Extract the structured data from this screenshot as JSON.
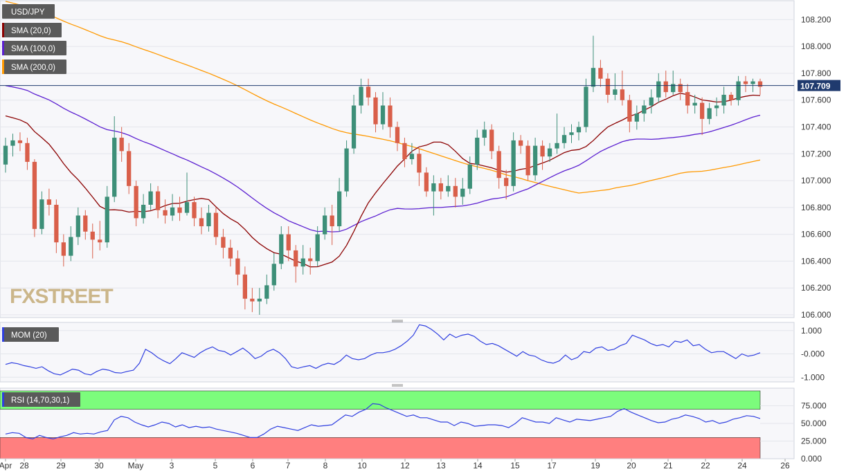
{
  "chart_data": [
    {
      "type": "candlestick",
      "title": "USD/JPY",
      "indicators": [
        {
          "name": "SMA (20,0)",
          "color": "#8b0000"
        },
        {
          "name": "SMA (100,0)",
          "color": "#5b1fd1"
        },
        {
          "name": "SMA (200,0)",
          "color": "#ff9900"
        }
      ],
      "last_price": "107.709",
      "ylim": [
        106.0,
        108.3
      ],
      "y_ticks": [
        "106.000",
        "106.200",
        "106.400",
        "106.600",
        "106.800",
        "107.000",
        "107.200",
        "107.400",
        "107.600",
        "107.800",
        "108.000",
        "108.200"
      ],
      "watermark": "FXSTREET",
      "colors": {
        "up": "#3d8f78",
        "down": "#d95f4a"
      },
      "candles": [
        [
          107.12,
          107.26,
          107.32,
          107.06
        ],
        [
          107.26,
          107.3,
          107.35,
          107.18
        ],
        [
          107.3,
          107.28,
          107.36,
          107.22
        ],
        [
          107.28,
          107.14,
          107.32,
          107.08
        ],
        [
          107.14,
          106.64,
          107.16,
          106.58
        ],
        [
          106.64,
          106.86,
          106.92,
          106.6
        ],
        [
          106.86,
          106.82,
          106.94,
          106.74
        ],
        [
          106.82,
          106.54,
          106.86,
          106.46
        ],
        [
          106.54,
          106.44,
          106.6,
          106.36
        ],
        [
          106.44,
          106.58,
          106.66,
          106.4
        ],
        [
          106.58,
          106.74,
          106.8,
          106.52
        ],
        [
          106.74,
          106.62,
          106.78,
          106.56
        ],
        [
          106.62,
          106.56,
          106.68,
          106.42
        ],
        [
          106.56,
          106.54,
          106.7,
          106.48
        ],
        [
          106.54,
          106.88,
          106.96,
          106.5
        ],
        [
          106.88,
          107.32,
          107.48,
          106.84
        ],
        [
          107.32,
          107.22,
          107.4,
          107.14
        ],
        [
          107.22,
          106.96,
          107.28,
          106.9
        ],
        [
          106.96,
          106.72,
          107.0,
          106.66
        ],
        [
          106.72,
          106.82,
          106.9,
          106.68
        ],
        [
          106.82,
          106.92,
          106.98,
          106.78
        ],
        [
          106.92,
          106.78,
          106.96,
          106.72
        ],
        [
          106.78,
          106.74,
          106.86,
          106.68
        ],
        [
          106.74,
          106.8,
          106.9,
          106.7
        ],
        [
          106.8,
          106.76,
          106.88,
          106.7
        ],
        [
          106.76,
          106.84,
          107.06,
          106.74
        ],
        [
          106.84,
          106.72,
          106.88,
          106.66
        ],
        [
          106.72,
          106.66,
          106.8,
          106.6
        ],
        [
          106.66,
          106.76,
          106.82,
          106.62
        ],
        [
          106.76,
          106.58,
          106.8,
          106.52
        ],
        [
          106.58,
          106.5,
          106.64,
          106.42
        ],
        [
          106.5,
          106.42,
          106.56,
          106.36
        ],
        [
          106.42,
          106.3,
          106.48,
          106.22
        ],
        [
          106.3,
          106.12,
          106.36,
          106.04
        ],
        [
          106.12,
          106.1,
          106.2,
          106.02
        ],
        [
          106.1,
          106.12,
          106.2,
          106.0
        ],
        [
          106.12,
          106.22,
          106.3,
          106.08
        ],
        [
          106.22,
          106.38,
          106.46,
          106.18
        ],
        [
          106.38,
          106.6,
          106.66,
          106.34
        ],
        [
          106.6,
          106.48,
          106.66,
          106.4
        ],
        [
          106.48,
          106.36,
          106.52,
          106.24
        ],
        [
          106.36,
          106.42,
          106.52,
          106.3
        ],
        [
          106.42,
          106.4,
          106.5,
          106.3
        ],
        [
          106.4,
          106.6,
          106.66,
          106.36
        ],
        [
          106.6,
          106.74,
          106.8,
          106.56
        ],
        [
          106.74,
          106.66,
          106.82,
          106.52
        ],
        [
          106.66,
          106.92,
          107.02,
          106.62
        ],
        [
          106.92,
          107.24,
          107.3,
          106.88
        ],
        [
          107.24,
          107.56,
          107.64,
          107.2
        ],
        [
          107.56,
          107.7,
          107.76,
          107.5
        ],
        [
          107.7,
          107.62,
          107.76,
          107.56
        ],
        [
          107.62,
          107.42,
          107.66,
          107.36
        ],
        [
          107.42,
          107.56,
          107.66,
          107.38
        ],
        [
          107.56,
          107.4,
          107.62,
          107.32
        ],
        [
          107.4,
          107.28,
          107.44,
          107.22
        ],
        [
          107.28,
          107.16,
          107.32,
          107.1
        ],
        [
          107.16,
          107.2,
          107.28,
          107.12
        ],
        [
          107.2,
          107.06,
          107.24,
          106.96
        ],
        [
          107.06,
          106.92,
          107.1,
          106.88
        ],
        [
          106.92,
          106.98,
          107.04,
          106.74
        ],
        [
          106.98,
          106.92,
          107.02,
          106.86
        ],
        [
          106.92,
          106.96,
          107.04,
          106.88
        ],
        [
          106.96,
          106.88,
          107.02,
          106.8
        ],
        [
          106.88,
          106.94,
          107.02,
          106.82
        ],
        [
          106.94,
          107.12,
          107.18,
          106.9
        ],
        [
          107.12,
          107.32,
          107.38,
          107.08
        ],
        [
          107.32,
          107.38,
          107.44,
          107.26
        ],
        [
          107.38,
          107.22,
          107.42,
          107.16
        ],
        [
          107.22,
          107.02,
          107.26,
          106.94
        ],
        [
          107.02,
          106.96,
          107.08,
          106.86
        ],
        [
          106.96,
          107.3,
          107.36,
          106.92
        ],
        [
          107.3,
          107.26,
          107.34,
          107.2
        ],
        [
          107.26,
          107.04,
          107.3,
          107.0
        ],
        [
          107.04,
          107.26,
          107.32,
          107.0
        ],
        [
          107.26,
          107.18,
          107.3,
          107.08
        ],
        [
          107.18,
          107.24,
          107.28,
          107.14
        ],
        [
          107.24,
          107.28,
          107.5,
          107.2
        ],
        [
          107.28,
          107.34,
          107.4,
          107.24
        ],
        [
          107.34,
          107.36,
          107.42,
          107.28
        ],
        [
          107.36,
          107.4,
          107.44,
          107.3
        ],
        [
          107.4,
          107.7,
          107.76,
          107.36
        ],
        [
          107.7,
          107.84,
          108.08,
          107.66
        ],
        [
          107.84,
          107.76,
          107.9,
          107.7
        ],
        [
          107.76,
          107.64,
          107.8,
          107.58
        ],
        [
          107.64,
          107.68,
          107.8,
          107.6
        ],
        [
          107.68,
          107.6,
          107.82,
          107.56
        ],
        [
          107.6,
          107.44,
          107.64,
          107.36
        ],
        [
          107.44,
          107.5,
          107.56,
          107.38
        ],
        [
          107.5,
          107.56,
          107.6,
          107.44
        ],
        [
          107.56,
          107.62,
          107.68,
          107.5
        ],
        [
          107.62,
          107.74,
          107.8,
          107.58
        ],
        [
          107.74,
          107.66,
          107.82,
          107.62
        ],
        [
          107.66,
          107.72,
          107.82,
          107.64
        ],
        [
          107.72,
          107.66,
          107.76,
          107.6
        ],
        [
          107.66,
          107.56,
          107.72,
          107.5
        ],
        [
          107.56,
          107.58,
          107.64,
          107.5
        ],
        [
          107.58,
          107.46,
          107.62,
          107.34
        ],
        [
          107.46,
          107.54,
          107.58,
          107.42
        ],
        [
          107.54,
          107.56,
          107.62,
          107.48
        ],
        [
          107.56,
          107.64,
          107.7,
          107.5
        ],
        [
          107.64,
          107.6,
          107.66,
          107.56
        ],
        [
          107.6,
          107.74,
          107.78,
          107.56
        ],
        [
          107.74,
          107.72,
          107.78,
          107.66
        ],
        [
          107.72,
          107.74,
          107.76,
          107.66
        ],
        [
          107.74,
          107.7,
          107.76,
          107.64
        ]
      ],
      "x_labels": [
        "Apr",
        "28",
        "29",
        "30",
        "May",
        "3",
        "5",
        "6",
        "7",
        "8",
        "10",
        "12",
        "13",
        "14",
        "15",
        "17",
        "19",
        "20",
        "21",
        "22",
        "24",
        "26"
      ]
    },
    {
      "type": "line",
      "title": "MOM (20)",
      "color": "#2f3fe0",
      "ylim": [
        -1.2,
        1.35
      ],
      "y_ticks": [
        "1.000",
        "-0.000",
        "-1.000"
      ],
      "values": [
        -0.45,
        -0.38,
        -0.42,
        -0.5,
        -0.55,
        -0.62,
        -0.55,
        -0.72,
        -0.85,
        -0.9,
        -0.78,
        -0.65,
        -0.7,
        -0.85,
        -0.9,
        -0.75,
        -0.65,
        -0.7,
        -0.8,
        -0.82,
        -0.75,
        -0.7,
        -0.4,
        0.2,
        0.05,
        -0.15,
        -0.3,
        -0.42,
        -0.2,
        0.05,
        -0.05,
        -0.15,
        0.05,
        0.2,
        0.3,
        0.15,
        0.1,
        -0.05,
        0.1,
        0.25,
        0.05,
        -0.2,
        -0.1,
        0.1,
        0.2,
        0.05,
        -0.2,
        -0.55,
        -0.62,
        -0.55,
        -0.5,
        -0.62,
        -0.48,
        -0.4,
        -0.45,
        -0.3,
        -0.05,
        -0.2,
        -0.25,
        -0.2,
        -0.05,
        0.05,
        0.05,
        0.1,
        0.2,
        0.35,
        0.55,
        0.8,
        1.25,
        1.2,
        1.05,
        0.85,
        0.6,
        0.85,
        0.7,
        0.8,
        0.85,
        0.75,
        0.55,
        0.4,
        0.45,
        0.35,
        0.2,
        0.05,
        -0.1,
        0.1,
        -0.05,
        -0.1,
        -0.25,
        -0.35,
        -0.4,
        -0.3,
        -0.05,
        -0.25,
        -0.15,
        0.1,
        0.05,
        0.25,
        0.3,
        0.15,
        0.2,
        0.35,
        0.45,
        0.8,
        0.7,
        0.6,
        0.45,
        0.35,
        0.4,
        0.3,
        0.55,
        0.5,
        0.6,
        0.35,
        0.4,
        0.2,
        0.05,
        0.1,
        0.1,
        -0.05,
        -0.2,
        0.0,
        -0.1,
        -0.05,
        0.05
      ]
    },
    {
      "type": "line",
      "title": "RSI (14,70,30,1)",
      "color": "#2f3fe0",
      "ylim": [
        0,
        100
      ],
      "y_ticks": [
        "75.000",
        "50.000",
        "25.000",
        "0.000"
      ],
      "zones": {
        "overbought": 70,
        "oversold": 30,
        "overbought_color": "#7cfc7c",
        "oversold_color": "#ff7f7f"
      },
      "values": [
        35,
        37,
        36,
        30,
        28,
        33,
        30,
        28,
        31,
        33,
        37,
        35,
        36,
        35,
        38,
        40,
        55,
        60,
        58,
        52,
        48,
        45,
        48,
        52,
        50,
        45,
        48,
        44,
        46,
        44,
        45,
        42,
        40,
        38,
        36,
        33,
        30,
        30,
        35,
        42,
        46,
        44,
        42,
        40,
        44,
        48,
        46,
        47,
        48,
        55,
        62,
        60,
        66,
        70,
        78,
        77,
        72,
        68,
        64,
        60,
        62,
        58,
        58,
        55,
        52,
        52,
        47,
        52,
        50,
        46,
        47,
        48,
        48,
        47,
        44,
        50,
        58,
        55,
        52,
        52,
        50,
        58,
        55,
        52,
        56,
        55,
        54,
        56,
        58,
        60,
        67,
        71,
        66,
        62,
        58,
        54,
        51,
        52,
        56,
        58,
        62,
        60,
        57,
        52,
        54,
        50,
        52,
        56,
        58,
        61,
        60,
        57
      ]
    }
  ]
}
